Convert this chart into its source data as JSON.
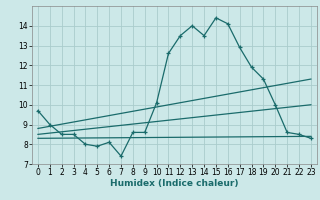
{
  "xlabel": "Humidex (Indice chaleur)",
  "bg_color": "#cce8e8",
  "grid_color": "#aacccc",
  "line_color": "#1a6b6b",
  "xlim": [
    -0.5,
    23.5
  ],
  "ylim": [
    7,
    15
  ],
  "yticks": [
    7,
    8,
    9,
    10,
    11,
    12,
    13,
    14
  ],
  "xticks": [
    0,
    1,
    2,
    3,
    4,
    5,
    6,
    7,
    8,
    9,
    10,
    11,
    12,
    13,
    14,
    15,
    16,
    17,
    18,
    19,
    20,
    21,
    22,
    23
  ],
  "line1_x": [
    0,
    1,
    2,
    3,
    4,
    5,
    6,
    7,
    8,
    9,
    10,
    11,
    12,
    13,
    14,
    15,
    16,
    17,
    18,
    19,
    20,
    21,
    22,
    23
  ],
  "line1_y": [
    9.7,
    9.0,
    8.5,
    8.5,
    8.0,
    7.9,
    8.1,
    7.4,
    8.6,
    8.6,
    10.1,
    12.6,
    13.5,
    14.0,
    13.5,
    14.4,
    14.1,
    12.9,
    11.9,
    11.3,
    10.0,
    8.6,
    8.5,
    8.3
  ],
  "line2_x": [
    0,
    23
  ],
  "line2_y": [
    8.8,
    11.3
  ],
  "line3_x": [
    0,
    23
  ],
  "line3_y": [
    8.5,
    10.0
  ],
  "line4_x": [
    0,
    23
  ],
  "line4_y": [
    8.3,
    8.4
  ]
}
